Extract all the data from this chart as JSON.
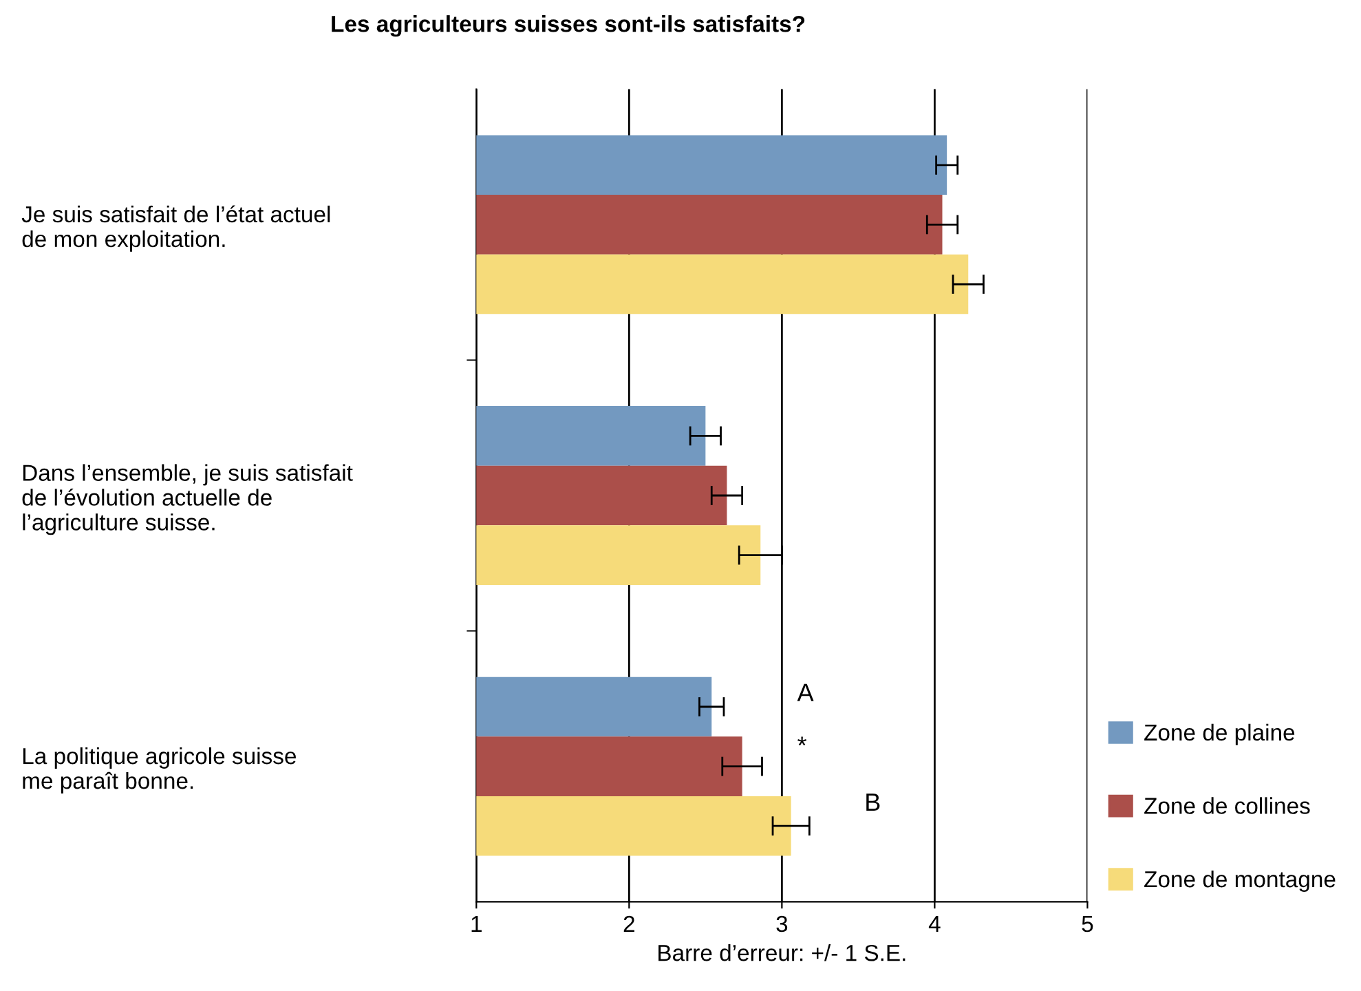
{
  "chart_data": {
    "type": "bar",
    "orientation": "horizontal",
    "title": "Les agriculteurs suisses sont-ils satisfaits?",
    "xlabel": "Barre d’erreur: +/- 1 S.E.",
    "categories": [
      "Je suis satisfait de l’état actuel\nde mon exploitation.",
      "Dans l’ensemble, je suis satisfait\nde l’évolution actuelle de\nl’agriculture suisse.",
      "La politique agricole suisse\nme paraît bonne."
    ],
    "series": [
      {
        "name": "Zone de plaine",
        "color": "#7399c0",
        "values": [
          4.08,
          2.5,
          2.54
        ],
        "errors": [
          0.07,
          0.1,
          0.08
        ]
      },
      {
        "name": "Zone de collines",
        "color": "#ab4f4a",
        "values": [
          4.05,
          2.64,
          2.74
        ],
        "errors": [
          0.1,
          0.1,
          0.13
        ]
      },
      {
        "name": "Zone de montagne",
        "color": "#f6db7a",
        "values": [
          4.22,
          2.86,
          3.06
        ],
        "errors": [
          0.1,
          0.14,
          0.12
        ]
      }
    ],
    "xlim": [
      1,
      5
    ],
    "xticks": [
      1,
      2,
      3,
      4,
      5
    ],
    "grid": "x",
    "legend": "bottom right",
    "annotations": [
      "A",
      "*",
      "B"
    ]
  }
}
